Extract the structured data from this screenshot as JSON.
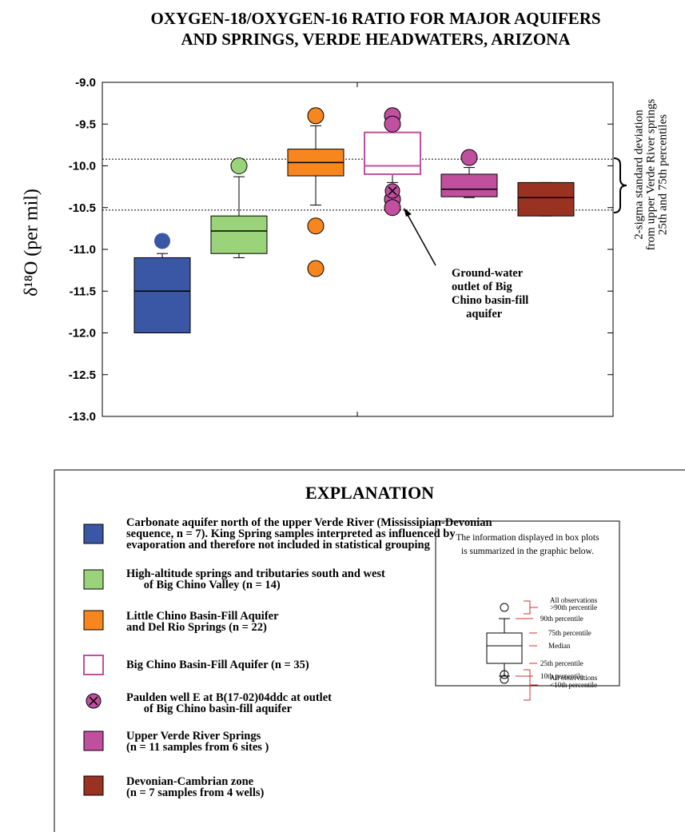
{
  "chart_data": {
    "type": "box",
    "title": "OXYGEN-18/OXYGEN-16 RATIO FOR MAJOR AQUIFERS\nAND SPRINGS, VERDE HEADWATERS, ARIZONA",
    "ylabel": "δ¹⁸O (per mil)",
    "ylim": [
      -13,
      -9
    ],
    "yticks": [
      {
        "value": -9,
        "label": "-9.0"
      },
      -9.5,
      {
        "value": -10,
        "label": "-10.0"
      },
      -10.5,
      {
        "value": -11,
        "label": "-11.0"
      },
      -11.5,
      {
        "value": -12,
        "label": "-12.0"
      },
      -12.5,
      {
        "value": -13,
        "label": "-13.0"
      }
    ],
    "reference_lines": [
      -9.92,
      -10.53
    ],
    "reference_note": "2-sigma standard deviation\nfrom upper Verde River springs\n25th and 75th percentiles",
    "annotation": "Ground-water\noutlet of Big\nChino basin-fill\n     aquifer",
    "series": [
      {
        "name": "Carbonate aquifer north of the upper Verde River (Mississipian-Devonian\nsequence, n = 7). King Spring samples interpreted as influenced by\nevaporation and therefore not included in statistical grouping",
        "color": "#3a57a6",
        "fill": true,
        "q1": -12.0,
        "median": -11.5,
        "q3": -11.1,
        "whisker_low": -12.0,
        "whisker_high": -11.05,
        "outliers": [
          -10.9
        ]
      },
      {
        "name": "High-altitude springs and tributaries south and west\n      of Big Chino Valley (n = 14)",
        "color": "#9bd37a",
        "fill": true,
        "q1": -11.05,
        "median": -10.78,
        "q3": -10.6,
        "whisker_low": -11.1,
        "whisker_high": -10.13,
        "outliers": [
          -10.0
        ]
      },
      {
        "name": "Little Chino Basin-Fill Aquifer\nand Del Rio Springs (n = 22)",
        "color": "#f7861f",
        "fill": true,
        "q1": -10.12,
        "median": -9.96,
        "q3": -9.8,
        "whisker_low": -10.47,
        "whisker_high": -9.52,
        "outliers": [
          -9.4,
          -10.72,
          -11.23
        ]
      },
      {
        "name": "Big Chino Basin-Fill Aquifer (n = 35)",
        "color": "#c24fa0",
        "fill": false,
        "q1": -10.1,
        "median": -10.0,
        "q3": -9.6,
        "whisker_low": -10.2,
        "whisker_high": null,
        "outliers": [
          -9.4,
          -9.5,
          -10.4,
          -10.5
        ]
      },
      {
        "name": "Upper Verde River Springs\n(n = 11 samples from 6 sites )",
        "color": "#c04f9e",
        "fill": true,
        "q1": -10.37,
        "median": -10.28,
        "q3": -10.1,
        "whisker_low": -10.38,
        "whisker_high": -10.02,
        "outliers": [
          -9.9
        ]
      },
      {
        "name": "Devonian-Cambrian zone\n(n = 7 samples from 4 wells)",
        "color": "#9a3222",
        "fill": true,
        "q1": -10.6,
        "median": -10.38,
        "q3": -10.2,
        "whisker_low": -10.6,
        "whisker_high": -10.2,
        "outliers": []
      }
    ],
    "marker": {
      "name": "Paulden well E at B(17-02)04ddc at outlet\n      of Big Chino basin-fill aquifer",
      "series_index": 3,
      "value": -10.3,
      "color": "#c04f9e"
    },
    "legend_title": "EXPLANATION",
    "box_key": {
      "caption": "The information displayed in box plots\nis summarized in the graphic below.",
      "labels": [
        "All observations\n>90th percentile",
        "90th percentile",
        "75th percentile",
        "Median",
        "25th percentile",
        "10th percentile",
        "All observations\n<10th percentile"
      ]
    }
  }
}
